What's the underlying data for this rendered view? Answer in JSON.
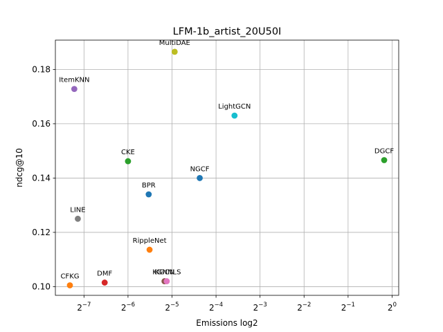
{
  "chart_data": {
    "type": "scatter",
    "title": "LFM-1b_artist_20U50I",
    "xlabel": "Emissions log2",
    "ylabel": "ndcg@10",
    "x_scale": "log2",
    "xlim_log2": [
      -7.65,
      0.15
    ],
    "ylim": [
      0.0968,
      0.1908
    ],
    "x_ticks": [
      {
        "exp": -7,
        "base": "2",
        "sup": "−7"
      },
      {
        "exp": -6,
        "base": "2",
        "sup": "−6"
      },
      {
        "exp": -5,
        "base": "2",
        "sup": "−5"
      },
      {
        "exp": -4,
        "base": "2",
        "sup": "−4"
      },
      {
        "exp": -3,
        "base": "2",
        "sup": "−3"
      },
      {
        "exp": -2,
        "base": "2",
        "sup": "−2"
      },
      {
        "exp": -1,
        "base": "2",
        "sup": "−1"
      },
      {
        "exp": 0,
        "base": "2",
        "sup": "0"
      }
    ],
    "y_ticks": [
      {
        "value": 0.1,
        "label": "0.10"
      },
      {
        "value": 0.12,
        "label": "0.12"
      },
      {
        "value": 0.14,
        "label": "0.14"
      },
      {
        "value": 0.16,
        "label": "0.16"
      },
      {
        "value": 0.18,
        "label": "0.18"
      }
    ],
    "grid": true,
    "points": [
      {
        "label": "CFKG",
        "x_log2": -7.32,
        "y": 0.1005,
        "color": "#ff7f0e"
      },
      {
        "label": "LINE",
        "x_log2": -7.14,
        "y": 0.125,
        "color": "#7f7f7f"
      },
      {
        "label": "ItemKNN",
        "x_log2": -7.22,
        "y": 0.1728,
        "color": "#9467bd"
      },
      {
        "label": "DMF",
        "x_log2": -6.53,
        "y": 0.1015,
        "color": "#d62728"
      },
      {
        "label": "CKE",
        "x_log2": -6.0,
        "y": 0.1462,
        "color": "#2ca02c"
      },
      {
        "label": "BPR",
        "x_log2": -5.53,
        "y": 0.134,
        "color": "#1f77b4"
      },
      {
        "label": "RippleNet",
        "x_log2": -5.51,
        "y": 0.1136,
        "color": "#ff7f0e"
      },
      {
        "label": "KGCN",
        "x_log2": -5.17,
        "y": 0.102,
        "color": "#8c564b"
      },
      {
        "label": "KGNNLS",
        "x_log2": -5.12,
        "y": 0.102,
        "color": "#e377c2"
      },
      {
        "label": "MultiDAE",
        "x_log2": -4.94,
        "y": 0.1865,
        "color": "#bcbd22"
      },
      {
        "label": "NGCF",
        "x_log2": -4.37,
        "y": 0.14,
        "color": "#1f77b4"
      },
      {
        "label": "LightGCN",
        "x_log2": -3.58,
        "y": 0.163,
        "color": "#17becf"
      },
      {
        "label": "DGCF",
        "x_log2": -0.18,
        "y": 0.1466,
        "color": "#2ca02c"
      }
    ]
  }
}
